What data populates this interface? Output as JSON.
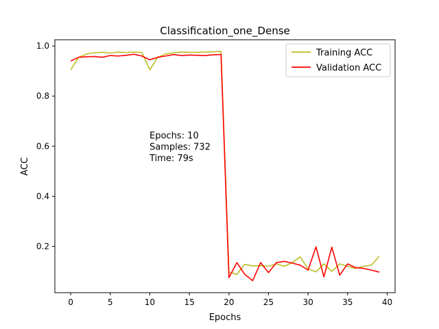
{
  "chart_data": {
    "type": "line",
    "title": "Classification_one_Dense",
    "xlabel": "Epochs",
    "ylabel": "ACC",
    "xlim": [
      -2,
      41
    ],
    "ylim": [
      0.015,
      1.025
    ],
    "xticks": [
      0,
      5,
      10,
      15,
      20,
      25,
      30,
      35,
      40
    ],
    "yticks": [
      0.2,
      0.4,
      0.6,
      0.8,
      1.0
    ],
    "ytick_labels": [
      "0.2",
      "0.4",
      "0.6",
      "0.8",
      "1.0"
    ],
    "grid": false,
    "legend_position": "top-right",
    "annotation": [
      "Epochs: 10",
      "Samples: 732",
      "Time: 79s"
    ],
    "series": [
      {
        "name": "Training ACC",
        "color": "#bcbd22",
        "x": [
          0,
          1,
          2,
          3,
          4,
          5,
          6,
          7,
          8,
          9,
          10,
          11,
          12,
          13,
          14,
          15,
          16,
          17,
          18,
          19,
          20,
          21,
          22,
          23,
          24,
          25,
          26,
          27,
          28,
          29,
          30,
          31,
          32,
          33,
          34,
          35,
          36,
          37,
          38,
          39
        ],
        "values": [
          0.905,
          0.955,
          0.968,
          0.973,
          0.975,
          0.972,
          0.976,
          0.974,
          0.976,
          0.974,
          0.905,
          0.955,
          0.968,
          0.973,
          0.976,
          0.975,
          0.975,
          0.976,
          0.977,
          0.978,
          0.098,
          0.088,
          0.128,
          0.122,
          0.123,
          0.12,
          0.13,
          0.12,
          0.135,
          0.158,
          0.11,
          0.098,
          0.13,
          0.1,
          0.13,
          0.12,
          0.112,
          0.12,
          0.125,
          0.16
        ]
      },
      {
        "name": "Validation ACC",
        "color": "#ff0000",
        "x": [
          0,
          1,
          2,
          3,
          4,
          5,
          6,
          7,
          8,
          9,
          10,
          11,
          12,
          13,
          14,
          15,
          16,
          17,
          18,
          19,
          20,
          21,
          22,
          23,
          24,
          25,
          26,
          27,
          28,
          29,
          30,
          31,
          32,
          33,
          34,
          35,
          36,
          37,
          38,
          39
        ],
        "values": [
          0.94,
          0.955,
          0.957,
          0.958,
          0.955,
          0.962,
          0.96,
          0.963,
          0.967,
          0.96,
          0.945,
          0.955,
          0.96,
          0.966,
          0.962,
          0.964,
          0.963,
          0.962,
          0.965,
          0.966,
          0.075,
          0.135,
          0.088,
          0.063,
          0.135,
          0.095,
          0.135,
          0.14,
          0.133,
          0.125,
          0.105,
          0.198,
          0.078,
          0.197,
          0.085,
          0.13,
          0.115,
          0.112,
          0.105,
          0.097
        ]
      }
    ]
  }
}
